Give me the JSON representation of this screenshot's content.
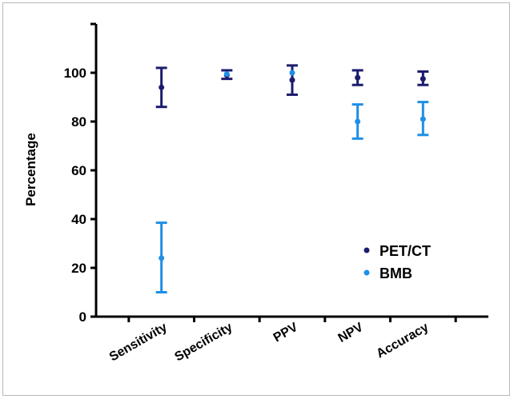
{
  "chart_data": {
    "type": "scatter",
    "subtype": "error-bar",
    "title": "",
    "xlabel": "",
    "ylabel": "Percentage",
    "ylim": [
      0,
      120
    ],
    "yticks": [
      0,
      20,
      40,
      60,
      80,
      100
    ],
    "grid": false,
    "legend_position": "bottom-right",
    "categories": [
      "Sensitivity",
      "Specificity",
      "PPV",
      "NPV",
      "Accuracy"
    ],
    "series": [
      {
        "name": "PET/CT",
        "color": "#1c1c6e",
        "values": [
          94,
          99,
          97,
          98,
          97.5
        ],
        "lower": [
          86,
          97.5,
          91,
          95,
          95
        ],
        "upper": [
          102,
          101,
          103,
          101,
          100.5
        ]
      },
      {
        "name": "BMB",
        "color": "#1e8fe6",
        "values": [
          24,
          99.5,
          100,
          80,
          81
        ],
        "lower": [
          10,
          99.5,
          100,
          73,
          74.5
        ],
        "upper": [
          38.5,
          99.5,
          100,
          87,
          88
        ]
      }
    ]
  }
}
